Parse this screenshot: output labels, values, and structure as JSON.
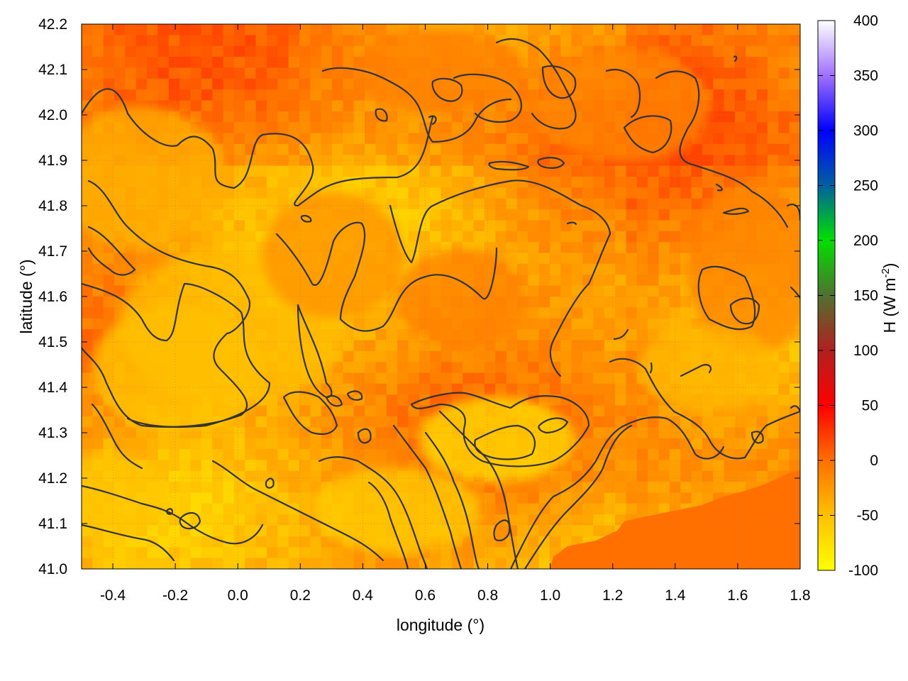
{
  "chart_data": {
    "type": "heatmap",
    "title": "",
    "xlabel": "longitude (°)",
    "ylabel": "latitude (°)",
    "colorbar_label_main": "H (W m",
    "colorbar_label_exp": "-2",
    "colorbar_label_close": ")",
    "xlim": [
      -0.5,
      1.8
    ],
    "ylim": [
      41.0,
      42.2
    ],
    "x_ticks": [
      -0.4,
      -0.2,
      0.0,
      0.2,
      0.4,
      0.6,
      0.8,
      1.0,
      1.2,
      1.4,
      1.6,
      1.8
    ],
    "x_tick_labels": [
      "-0.4",
      "-0.2",
      "0.0",
      "0.2",
      "0.4",
      "0.6",
      "0.8",
      "1.0",
      "1.2",
      "1.4",
      "1.6",
      "1.8"
    ],
    "y_ticks": [
      41.0,
      41.1,
      41.2,
      41.3,
      41.4,
      41.5,
      41.6,
      41.7,
      41.8,
      41.9,
      42.0,
      42.1,
      42.2
    ],
    "y_tick_labels": [
      "41.0",
      "41.1",
      "41.2",
      "41.3",
      "41.4",
      "41.5",
      "41.6",
      "41.7",
      "41.8",
      "41.9",
      "42.0",
      "42.1",
      "42.2"
    ],
    "colorbar_range": [
      -100,
      400
    ],
    "colorbar_ticks": [
      -100,
      -50,
      0,
      50,
      100,
      150,
      200,
      250,
      300,
      350,
      400
    ],
    "colorbar_tick_labels": [
      "-100",
      "-50",
      "0",
      "50",
      "100",
      "150",
      "200",
      "250",
      "300",
      "350",
      "400"
    ],
    "colorbar_stops": [
      {
        "value": -100,
        "color": "#ffff00"
      },
      {
        "value": -50,
        "color": "#ffc000"
      },
      {
        "value": 0,
        "color": "#ff7000"
      },
      {
        "value": 50,
        "color": "#ff0000"
      },
      {
        "value": 100,
        "color": "#b02020"
      },
      {
        "value": 150,
        "color": "#507030"
      },
      {
        "value": 200,
        "color": "#00e000"
      },
      {
        "value": 250,
        "color": "#0060a0"
      },
      {
        "value": 300,
        "color": "#0000ff"
      },
      {
        "value": 350,
        "color": "#a070ff"
      },
      {
        "value": 400,
        "color": "#ffffff"
      }
    ],
    "field_value_range_estimate": [
      -70,
      40
    ],
    "grid": true,
    "contours": true,
    "contour_color": "#333333",
    "sea_region_value_estimate": 0,
    "sea_region_location": "bottom-right"
  }
}
